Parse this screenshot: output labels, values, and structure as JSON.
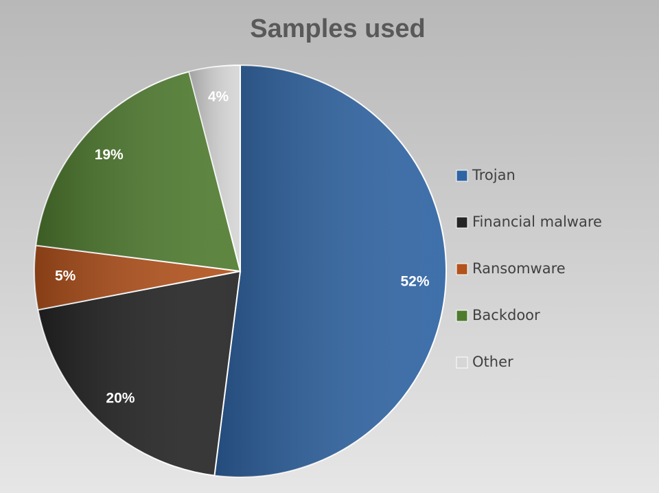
{
  "chart_data": {
    "type": "pie",
    "title": "Samples used",
    "categories": [
      "Trojan",
      "Financial malware",
      "Ransomware",
      "Backdoor",
      "Other"
    ],
    "values": [
      52,
      20,
      5,
      19,
      4
    ],
    "value_labels": [
      "52%",
      "20%",
      "5%",
      "19%",
      "4%"
    ],
    "colors": [
      "#2f64a3",
      "#252525",
      "#b3521c",
      "#4f7b2f",
      "#d6d6d6"
    ],
    "legend": "right"
  }
}
